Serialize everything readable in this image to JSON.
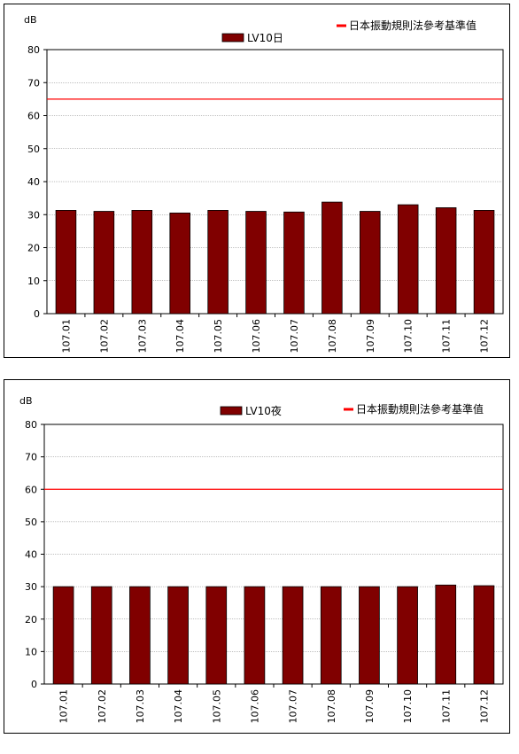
{
  "colors": {
    "bar": "#800000",
    "bar_edge": "#000000",
    "reference_line": "#ff0000",
    "grid": "#808080"
  },
  "chart_data": [
    {
      "type": "bar",
      "title": "",
      "xlabel": "",
      "ylabel": "dB",
      "ylim": [
        0,
        80
      ],
      "yticks": [
        0,
        10,
        20,
        30,
        40,
        50,
        60,
        70,
        80
      ],
      "grid": true,
      "categories": [
        "107.01",
        "107.02",
        "107.03",
        "107.04",
        "107.05",
        "107.06",
        "107.07",
        "107.08",
        "107.09",
        "107.10",
        "107.11",
        "107.12"
      ],
      "series": [
        {
          "name": "LV10日",
          "values": [
            31.3,
            31.0,
            31.3,
            30.5,
            31.3,
            31.0,
            30.8,
            33.8,
            31.0,
            33.0,
            32.1,
            31.3
          ]
        }
      ],
      "reference_line": {
        "name": "日本振動規則法參考基準值",
        "value": 65
      },
      "legend_position": "top"
    },
    {
      "type": "bar",
      "title": "",
      "xlabel": "",
      "ylabel": "dB",
      "ylim": [
        0,
        80
      ],
      "yticks": [
        0,
        10,
        20,
        30,
        40,
        50,
        60,
        70,
        80
      ],
      "grid": true,
      "categories": [
        "107.01",
        "107.02",
        "107.03",
        "107.04",
        "107.05",
        "107.06",
        "107.07",
        "107.08",
        "107.09",
        "107.10",
        "107.11",
        "107.12"
      ],
      "series": [
        {
          "name": "LV10夜",
          "values": [
            30.0,
            30.0,
            30.0,
            30.0,
            30.0,
            30.0,
            30.0,
            30.0,
            30.0,
            30.0,
            30.5,
            30.3
          ]
        }
      ],
      "reference_line": {
        "name": "日本振動規則法參考基準值",
        "value": 60
      },
      "legend_position": "top"
    }
  ]
}
